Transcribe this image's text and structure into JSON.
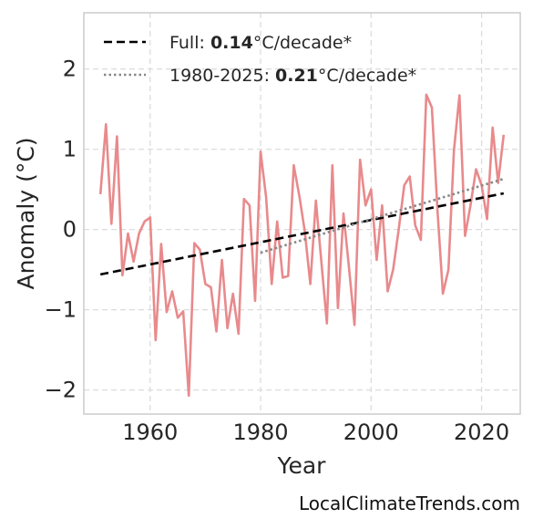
{
  "chart_data": {
    "type": "line",
    "xlabel": "Year",
    "ylabel": "Anomaly (°C)",
    "xlim": [
      1948,
      2027
    ],
    "ylim": [
      -2.3,
      2.7
    ],
    "xticks": [
      1960,
      1980,
      2000,
      2020
    ],
    "yticks": [
      -2,
      -1,
      0,
      1,
      2
    ],
    "ytick_labels": [
      "−2",
      "−1",
      "0",
      "1",
      "2"
    ],
    "grid": true,
    "legend_position": "top-left",
    "colors": {
      "series": "#e88a8c",
      "full_trend": "#000000",
      "recent_trend": "#888888",
      "grid": "#dcdcdc",
      "frame": "#cccccc"
    },
    "series": [
      {
        "x": [
          1951,
          1952,
          1953,
          1954,
          1955,
          1956,
          1957,
          1958,
          1959,
          1960,
          1961,
          1962,
          1963,
          1964,
          1965,
          1966,
          1967,
          1968,
          1969,
          1970,
          1971,
          1972,
          1973,
          1974,
          1975,
          1976,
          1977,
          1978,
          1979,
          1980,
          1981,
          1982,
          1983,
          1984,
          1985,
          1986,
          1987,
          1988,
          1989,
          1990,
          1991,
          1992,
          1993,
          1994,
          1995,
          1996,
          1997,
          1998,
          1999,
          2000,
          2001,
          2002,
          2003,
          2004,
          2005,
          2006,
          2007,
          2008,
          2009,
          2010,
          2011,
          2012,
          2013,
          2014,
          2015,
          2016,
          2017,
          2018,
          2019,
          2020,
          2021,
          2022,
          2023,
          2024
        ],
        "y": [
          0.44,
          1.31,
          0.07,
          1.16,
          -0.57,
          -0.05,
          -0.4,
          -0.05,
          0.1,
          0.15,
          -1.38,
          -0.18,
          -1.03,
          -0.77,
          -1.1,
          -1.02,
          -2.07,
          -0.17,
          -0.25,
          -0.68,
          -0.72,
          -1.27,
          -0.38,
          -1.23,
          -0.8,
          -1.3,
          0.38,
          0.3,
          -0.89,
          0.97,
          0.4,
          -0.68,
          0.1,
          -0.6,
          -0.58,
          0.8,
          0.42,
          -0.02,
          -0.68,
          0.36,
          -0.4,
          -1.17,
          0.8,
          -0.98,
          0.2,
          -0.47,
          -1.19,
          0.87,
          0.3,
          0.5,
          -0.38,
          0.3,
          -0.77,
          -0.5,
          0.0,
          0.55,
          0.66,
          0.05,
          -0.13,
          1.68,
          1.52,
          0.25,
          -0.8,
          -0.5,
          0.98,
          1.67,
          -0.08,
          0.3,
          0.75,
          0.55,
          0.13,
          1.27,
          0.58,
          1.18
        ]
      }
    ],
    "trend_lines": [
      {
        "kind": "full",
        "style": "dashed",
        "x": [
          1951,
          2024
        ],
        "y": [
          -0.56,
          0.45
        ]
      },
      {
        "kind": "recent",
        "style": "dotted",
        "x": [
          1980,
          2024
        ],
        "y": [
          -0.29,
          0.63
        ]
      }
    ],
    "legend": [
      {
        "prefix": "Full: ",
        "rate": "0.14",
        "suffix": "°C/decade*"
      },
      {
        "prefix": "1980-2025: ",
        "rate": "0.21",
        "suffix": "°C/decade*"
      }
    ]
  },
  "watermark": "LocalClimateTrends.com"
}
